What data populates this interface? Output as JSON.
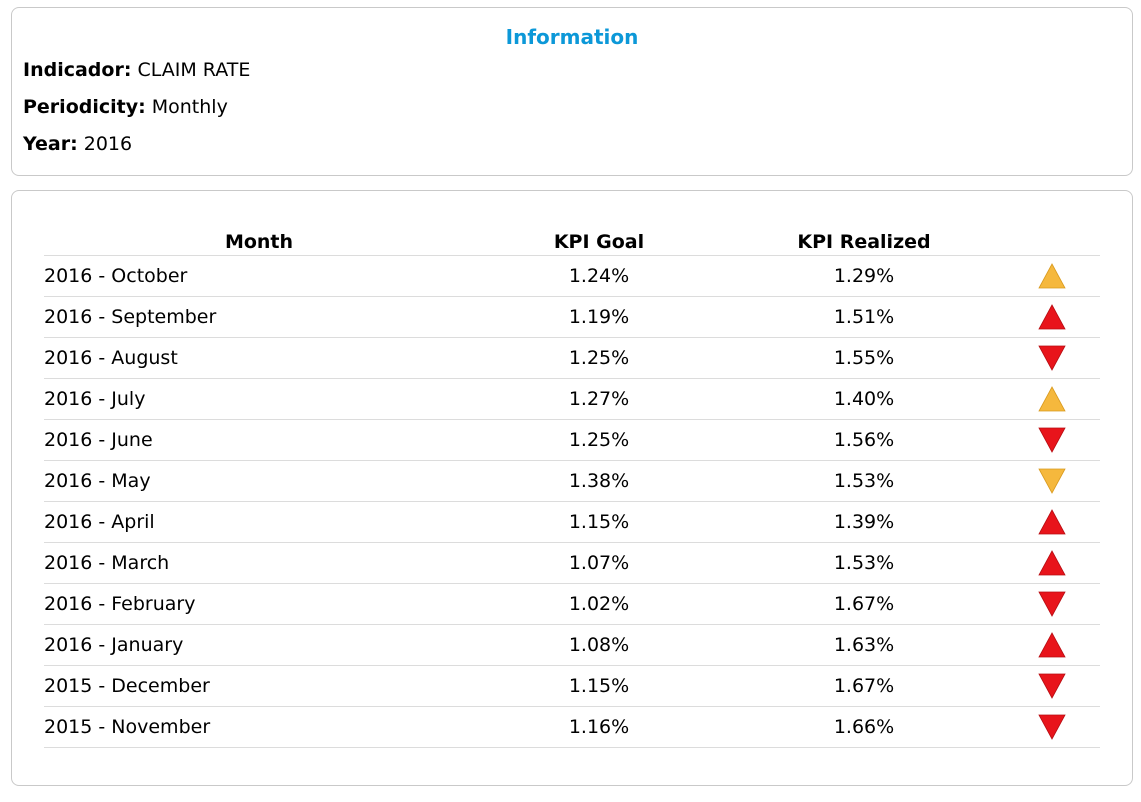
{
  "info": {
    "title": "Information",
    "indicador_label": "Indicador:",
    "indicador_value": "CLAIM RATE",
    "periodicity_label": "Periodicity:",
    "periodicity_value": "Monthly",
    "year_label": "Year:",
    "year_value": "2016"
  },
  "table": {
    "headers": {
      "month": "Month",
      "goal": "KPI Goal",
      "realized": "KPI Realized"
    },
    "rows": [
      {
        "month": "2016 - October",
        "goal": "1.24%",
        "realized": "1.29%",
        "indicator": "up",
        "color": "#f5b83d"
      },
      {
        "month": "2016 - September",
        "goal": "1.19%",
        "realized": "1.51%",
        "indicator": "up",
        "color": "#e8141b"
      },
      {
        "month": "2016 - August",
        "goal": "1.25%",
        "realized": "1.55%",
        "indicator": "down",
        "color": "#e8141b"
      },
      {
        "month": "2016 - July",
        "goal": "1.27%",
        "realized": "1.40%",
        "indicator": "up",
        "color": "#f5b83d"
      },
      {
        "month": "2016 - June",
        "goal": "1.25%",
        "realized": "1.56%",
        "indicator": "down",
        "color": "#e8141b"
      },
      {
        "month": "2016 - May",
        "goal": "1.38%",
        "realized": "1.53%",
        "indicator": "down",
        "color": "#f5b83d"
      },
      {
        "month": "2016 - April",
        "goal": "1.15%",
        "realized": "1.39%",
        "indicator": "up",
        "color": "#e8141b"
      },
      {
        "month": "2016 - March",
        "goal": "1.07%",
        "realized": "1.53%",
        "indicator": "up",
        "color": "#e8141b"
      },
      {
        "month": "2016 - February",
        "goal": "1.02%",
        "realized": "1.67%",
        "indicator": "down",
        "color": "#e8141b"
      },
      {
        "month": "2016 - January",
        "goal": "1.08%",
        "realized": "1.63%",
        "indicator": "up",
        "color": "#e8141b"
      },
      {
        "month": "2015 - December",
        "goal": "1.15%",
        "realized": "1.67%",
        "indicator": "down",
        "color": "#e8141b"
      },
      {
        "month": "2015 - November",
        "goal": "1.16%",
        "realized": "1.66%",
        "indicator": "down",
        "color": "#e8141b"
      }
    ]
  }
}
